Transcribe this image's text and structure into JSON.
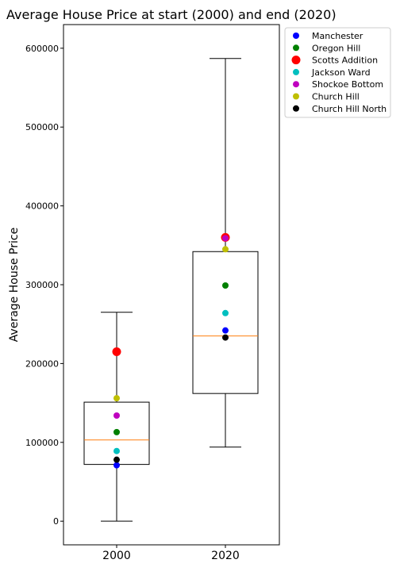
{
  "chart_data": {
    "type": "box",
    "title": "Average House Price at start (2000) and end (2020)",
    "xlabel": "",
    "ylabel": "Average House Price",
    "categories": [
      "2000",
      "2020"
    ],
    "ylim": [
      -30000,
      630000
    ],
    "yticks": [
      0,
      100000,
      200000,
      300000,
      400000,
      500000,
      600000
    ],
    "yticklabels": [
      "0",
      "100000",
      "200000",
      "300000",
      "400000",
      "500000",
      "600000"
    ],
    "boxes": [
      {
        "category": "2000",
        "whisker_low": 0,
        "q1": 72000,
        "median": 103000,
        "q3": 151000,
        "whisker_high": 265000
      },
      {
        "category": "2020",
        "whisker_low": 94000,
        "q1": 162000,
        "median": 235000,
        "q3": 342000,
        "whisker_high": 587000
      }
    ],
    "series": [
      {
        "name": "Manchester",
        "color": "#0000ff",
        "large": false,
        "values": [
          71000,
          242000
        ]
      },
      {
        "name": "Oregon Hill",
        "color": "#008000",
        "large": false,
        "values": [
          113000,
          299000
        ]
      },
      {
        "name": "Scotts Addition",
        "color": "#ff0000",
        "large": true,
        "values": [
          215000,
          360000
        ]
      },
      {
        "name": "Jackson Ward",
        "color": "#00bfbf",
        "large": false,
        "values": [
          89000,
          264000
        ]
      },
      {
        "name": "Shockoe Bottom",
        "color": "#bf00bf",
        "large": false,
        "values": [
          134000,
          359000
        ]
      },
      {
        "name": "Church Hill",
        "color": "#bfbf00",
        "large": false,
        "values": [
          156000,
          345000
        ]
      },
      {
        "name": "Church Hill North",
        "color": "#000000",
        "large": false,
        "values": [
          78000,
          233000
        ]
      }
    ],
    "median_color": "#ff7f0e",
    "legend_position": "outside-top-right",
    "grid": false
  }
}
